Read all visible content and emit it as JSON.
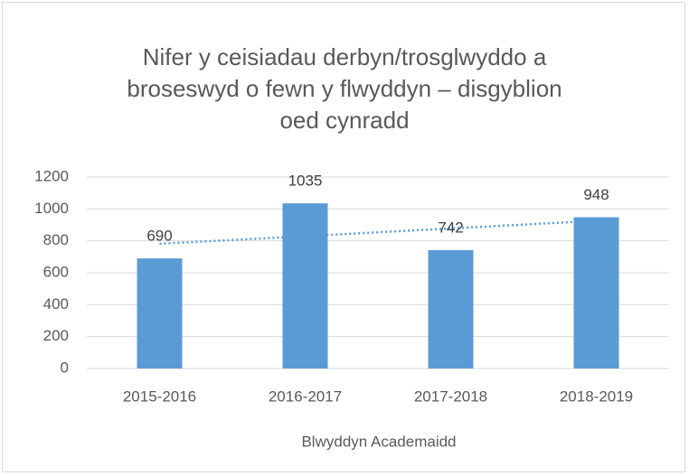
{
  "chart_data": {
    "type": "bar",
    "title": "Nifer y ceisiadau derbyn/trosglwyddo a broseswyd o fewn y flwyddyn – disgyblion oed cynradd",
    "x_label": "Blwyddyn Academaidd",
    "categories": [
      "2015-2016",
      "2016-2017",
      "2017-2018",
      "2018-2019"
    ],
    "values": [
      690,
      1035,
      742,
      948
    ],
    "color": "#5b9bd5",
    "ylim": [
      0,
      1200
    ],
    "yticks": [
      0,
      200,
      400,
      600,
      800,
      1000,
      1200
    ],
    "grid": true,
    "trendline": true,
    "data_labels": true
  }
}
